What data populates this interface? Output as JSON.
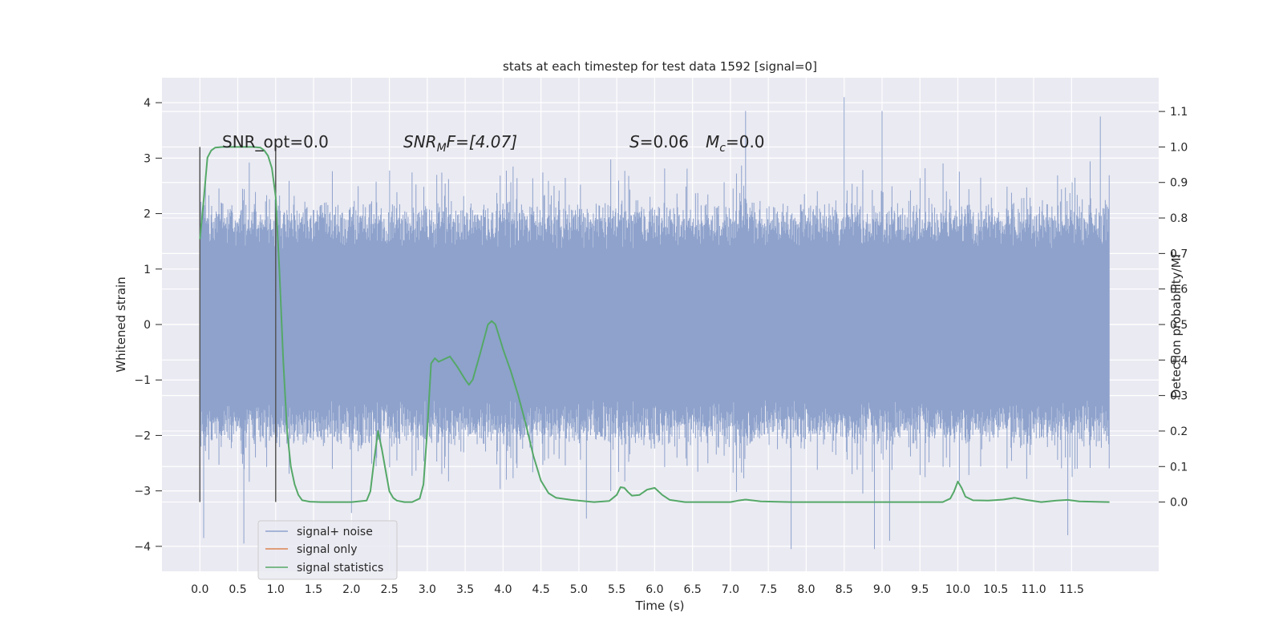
{
  "chart_data": {
    "type": "line",
    "title": "stats at each timestep for test data 1592 [signal=0]",
    "xlabel": "Time (s)",
    "ylabel": "Whitened strain",
    "ylabel_right": "Detection probability/MF",
    "xlim": [
      -0.5,
      12.65
    ],
    "ylim": [
      -4.45,
      4.45
    ],
    "ylim_right": [
      -0.195,
      1.195
    ],
    "x_ticks": [
      0.0,
      0.5,
      1.0,
      1.5,
      2.0,
      2.5,
      3.0,
      3.5,
      4.0,
      4.5,
      5.0,
      5.5,
      6.0,
      6.5,
      7.0,
      7.5,
      8.0,
      8.5,
      9.0,
      9.5,
      10.0,
      10.5,
      11.0,
      11.5
    ],
    "x_tick_labels": [
      "0.0",
      "0.5",
      "1.0",
      "1.5",
      "2.0",
      "2.5",
      "3.0",
      "3.5",
      "4.0",
      "4.5",
      "5.0",
      "5.5",
      "6.0",
      "6.5",
      "7.0",
      "7.5",
      "8.0",
      "8.5",
      "9.0",
      "9.5",
      "10.0",
      "10.5",
      "11.0",
      "11.5"
    ],
    "y_ticks": [
      -4,
      -3,
      -2,
      -1,
      0,
      1,
      2,
      3,
      4
    ],
    "y_tick_labels": [
      "−4",
      "−3",
      "−2",
      "−1",
      "0",
      "1",
      "2",
      "3",
      "4"
    ],
    "y_ticks_right": [
      0.0,
      0.1,
      0.2,
      0.3,
      0.4,
      0.5,
      0.6,
      0.7,
      0.8,
      0.9,
      1.0,
      1.1
    ],
    "y_tick_labels_right": [
      "0.0",
      "0.1",
      "0.2",
      "0.3",
      "0.4",
      "0.5",
      "0.6",
      "0.7",
      "0.8",
      "0.9",
      "1.0",
      "1.1"
    ],
    "grid": true,
    "legend_position": "lower-left",
    "colors": {
      "noise": "#8ea2cc",
      "signal": "#dd8452",
      "stats": "#55a868",
      "marker": "#555555",
      "background": "#eaeaf2",
      "grid": "#ffffff"
    },
    "annotations": {
      "snr_opt": "SNR_opt=0.0",
      "snr_mf_main": "SNR",
      "snr_mf_sub": "M",
      "snr_mf_rest": "F=[4.07]",
      "s_main": "S",
      "s_rest": "=0.06",
      "mc_main": "M",
      "mc_sub": "c",
      "mc_rest": "=0.0"
    },
    "vertical_markers": [
      {
        "x": 0.0,
        "y_range": [
          -3.2,
          3.2
        ]
      },
      {
        "x": 1.0,
        "y_range": [
          -3.2,
          3.2
        ]
      }
    ],
    "series": [
      {
        "name": "signal+ noise",
        "axis": "left",
        "x_range": [
          0.0,
          12.0
        ],
        "amplitude": 1.0,
        "extremes": [
          [
            0.05,
            -3.85
          ],
          [
            0.58,
            -3.95
          ],
          [
            2.0,
            -3.4
          ],
          [
            5.1,
            -3.5
          ],
          [
            7.8,
            -4.05
          ],
          [
            8.5,
            4.1
          ],
          [
            8.9,
            -4.05
          ],
          [
            9.0,
            3.85
          ],
          [
            9.1,
            -3.9
          ],
          [
            11.45,
            -3.8
          ],
          [
            11.88,
            3.75
          ],
          [
            7.2,
            3.85
          ]
        ]
      },
      {
        "name": "signal only",
        "axis": "left",
        "x": [
          0.0,
          12.0
        ],
        "y": [
          0.0,
          0.0
        ]
      },
      {
        "name": "signal statistics",
        "axis": "right",
        "x": [
          0.0,
          0.05,
          0.1,
          0.15,
          0.2,
          0.3,
          0.5,
          0.7,
          0.8,
          0.85,
          0.9,
          0.95,
          1.0,
          1.05,
          1.1,
          1.15,
          1.2,
          1.25,
          1.3,
          1.35,
          1.45,
          1.6,
          2.0,
          2.2,
          2.25,
          2.3,
          2.35,
          2.4,
          2.45,
          2.5,
          2.55,
          2.6,
          2.7,
          2.8,
          2.9,
          2.95,
          3.0,
          3.05,
          3.1,
          3.15,
          3.2,
          3.3,
          3.4,
          3.5,
          3.55,
          3.6,
          3.7,
          3.8,
          3.85,
          3.9,
          4.0,
          4.1,
          4.2,
          4.3,
          4.4,
          4.5,
          4.6,
          4.7,
          4.9,
          5.2,
          5.4,
          5.5,
          5.55,
          5.6,
          5.65,
          5.7,
          5.8,
          5.9,
          6.0,
          6.1,
          6.2,
          6.4,
          6.8,
          7.0,
          7.1,
          7.2,
          7.4,
          7.8,
          8.5,
          9.0,
          9.5,
          9.8,
          9.9,
          9.95,
          10.0,
          10.05,
          10.1,
          10.2,
          10.4,
          10.6,
          10.75,
          10.9,
          11.1,
          11.3,
          11.45,
          11.6,
          12.0
        ],
        "y": [
          0.74,
          0.85,
          0.97,
          0.99,
          0.998,
          1.0,
          1.0,
          1.0,
          0.998,
          0.99,
          0.975,
          0.94,
          0.86,
          0.65,
          0.4,
          0.2,
          0.1,
          0.05,
          0.02,
          0.005,
          0.001,
          0.0,
          0.0,
          0.004,
          0.03,
          0.12,
          0.2,
          0.15,
          0.09,
          0.03,
          0.012,
          0.004,
          0.0,
          0.0,
          0.01,
          0.05,
          0.2,
          0.39,
          0.405,
          0.395,
          0.4,
          0.41,
          0.38,
          0.345,
          0.33,
          0.345,
          0.42,
          0.5,
          0.51,
          0.5,
          0.43,
          0.37,
          0.3,
          0.22,
          0.13,
          0.06,
          0.025,
          0.012,
          0.006,
          0.0,
          0.003,
          0.02,
          0.042,
          0.04,
          0.028,
          0.018,
          0.02,
          0.035,
          0.04,
          0.02,
          0.006,
          0.0,
          0.0,
          0.0,
          0.004,
          0.007,
          0.002,
          0.0,
          0.0,
          0.0,
          0.0,
          0.0,
          0.01,
          0.03,
          0.058,
          0.04,
          0.015,
          0.005,
          0.004,
          0.007,
          0.012,
          0.006,
          0.0,
          0.004,
          0.006,
          0.002,
          0.0
        ]
      }
    ]
  }
}
